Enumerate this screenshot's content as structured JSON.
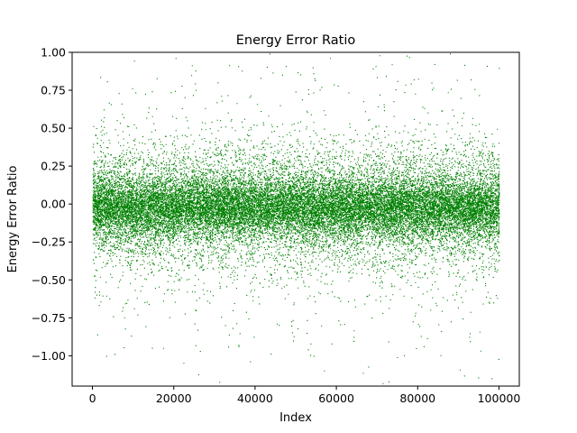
{
  "chart_data": {
    "type": "scatter",
    "title": "Energy Error Ratio",
    "xlabel": "Index",
    "ylabel": "Energy Error Ratio",
    "xlim": [
      -5000,
      105000
    ],
    "ylim": [
      -1.2,
      1.0
    ],
    "x_ticks": [
      0,
      20000,
      40000,
      60000,
      80000,
      100000
    ],
    "x_tick_labels": [
      "0",
      "20000",
      "40000",
      "60000",
      "80000",
      "100000"
    ],
    "y_ticks": [
      -1.0,
      -0.75,
      -0.5,
      -0.25,
      0.0,
      0.25,
      0.5,
      0.75,
      1.0
    ],
    "y_tick_labels": [
      "−1.00",
      "−0.75",
      "−0.50",
      "−0.25",
      "0.00",
      "0.25",
      "0.50",
      "0.75",
      "1.00"
    ],
    "grid": false,
    "legend": "none",
    "series_color": "#008000",
    "point_count": 100000,
    "x_range": [
      0,
      100000
    ],
    "distribution": {
      "center": -0.02,
      "core_half_width": 0.12,
      "dense_band": [
        -0.4,
        0.4
      ],
      "sparse_tails": [
        -1.2,
        1.0
      ]
    }
  }
}
